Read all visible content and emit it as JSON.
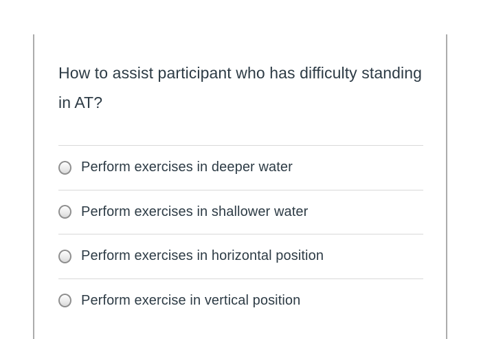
{
  "question": {
    "text": "How to assist participant who has difficulty standing in AT?"
  },
  "options": [
    {
      "label": "Perform exercises in deeper water"
    },
    {
      "label": "Perform exercises in shallower water"
    },
    {
      "label": "Perform exercises in horizontal position"
    },
    {
      "label": "Perform exercise in vertical position"
    }
  ],
  "colors": {
    "text": "#2d3b45",
    "card_border": "#ababab",
    "divider": "#d8d8d8",
    "radio_border": "#8e8e8e",
    "background": "#ffffff"
  }
}
